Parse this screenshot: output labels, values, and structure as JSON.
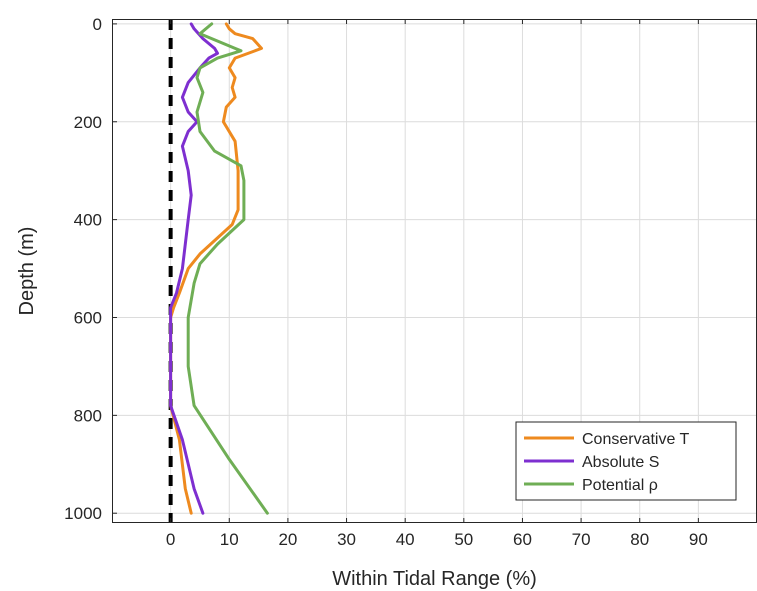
{
  "chart_data": {
    "type": "line",
    "xlabel": "Within Tidal Range (%)",
    "ylabel": "Depth (m)",
    "xlim": [
      -10,
      100
    ],
    "ylim": [
      1020,
      -10
    ],
    "y_direction": "reversed (depth increases downward)",
    "xticks": [
      0,
      10,
      20,
      30,
      40,
      50,
      60,
      70,
      80,
      90
    ],
    "yticks": [
      0,
      200,
      400,
      600,
      800,
      1000
    ],
    "grid": true,
    "legend_position": "bottom-right",
    "reference_line": {
      "x": 0,
      "style": "dashed",
      "color": "#000000"
    },
    "series": [
      {
        "name": "Conservative T",
        "color": "#EE8A1F",
        "points": [
          [
            9.5,
            0
          ],
          [
            10,
            10
          ],
          [
            11,
            20
          ],
          [
            14,
            30
          ],
          [
            15.5,
            50
          ],
          [
            11,
            70
          ],
          [
            10,
            90
          ],
          [
            11,
            110
          ],
          [
            10.5,
            130
          ],
          [
            11,
            150
          ],
          [
            9.5,
            170
          ],
          [
            9,
            200
          ],
          [
            11,
            240
          ],
          [
            11.5,
            300
          ],
          [
            11.5,
            380
          ],
          [
            10.5,
            410
          ],
          [
            5,
            470
          ],
          [
            3,
            500
          ],
          [
            1.5,
            550
          ],
          [
            0.5,
            580
          ],
          [
            0,
            600
          ],
          [
            0,
            700
          ],
          [
            0,
            780
          ],
          [
            1.5,
            850
          ],
          [
            2.5,
            950
          ],
          [
            3.5,
            1000
          ]
        ]
      },
      {
        "name": "Absolute S",
        "color": "#7E2FD0",
        "points": [
          [
            3.5,
            0
          ],
          [
            4,
            10
          ],
          [
            5.5,
            30
          ],
          [
            7.5,
            50
          ],
          [
            8,
            60
          ],
          [
            6.5,
            70
          ],
          [
            5,
            90
          ],
          [
            3,
            120
          ],
          [
            2,
            150
          ],
          [
            3,
            180
          ],
          [
            4.5,
            200
          ],
          [
            3,
            220
          ],
          [
            2,
            250
          ],
          [
            3,
            300
          ],
          [
            3.5,
            350
          ],
          [
            3,
            400
          ],
          [
            2.5,
            450
          ],
          [
            2,
            500
          ],
          [
            1,
            550
          ],
          [
            0,
            580
          ],
          [
            0,
            700
          ],
          [
            0,
            780
          ],
          [
            2,
            850
          ],
          [
            4,
            950
          ],
          [
            5.5,
            1000
          ]
        ]
      },
      {
        "name": "Potential ρ",
        "color": "#6FAE55",
        "points": [
          [
            7,
            0
          ],
          [
            5,
            20
          ],
          [
            9,
            40
          ],
          [
            11,
            50
          ],
          [
            12,
            55
          ],
          [
            8,
            70
          ],
          [
            5,
            90
          ],
          [
            4.5,
            110
          ],
          [
            5.5,
            140
          ],
          [
            4.5,
            180
          ],
          [
            5,
            220
          ],
          [
            7.5,
            260
          ],
          [
            12,
            290
          ],
          [
            12.5,
            320
          ],
          [
            12.5,
            360
          ],
          [
            12.5,
            400
          ],
          [
            8,
            450
          ],
          [
            5,
            490
          ],
          [
            4,
            530
          ],
          [
            3,
            600
          ],
          [
            3,
            700
          ],
          [
            4,
            780
          ],
          [
            10,
            890
          ],
          [
            16.5,
            1000
          ]
        ]
      }
    ]
  }
}
